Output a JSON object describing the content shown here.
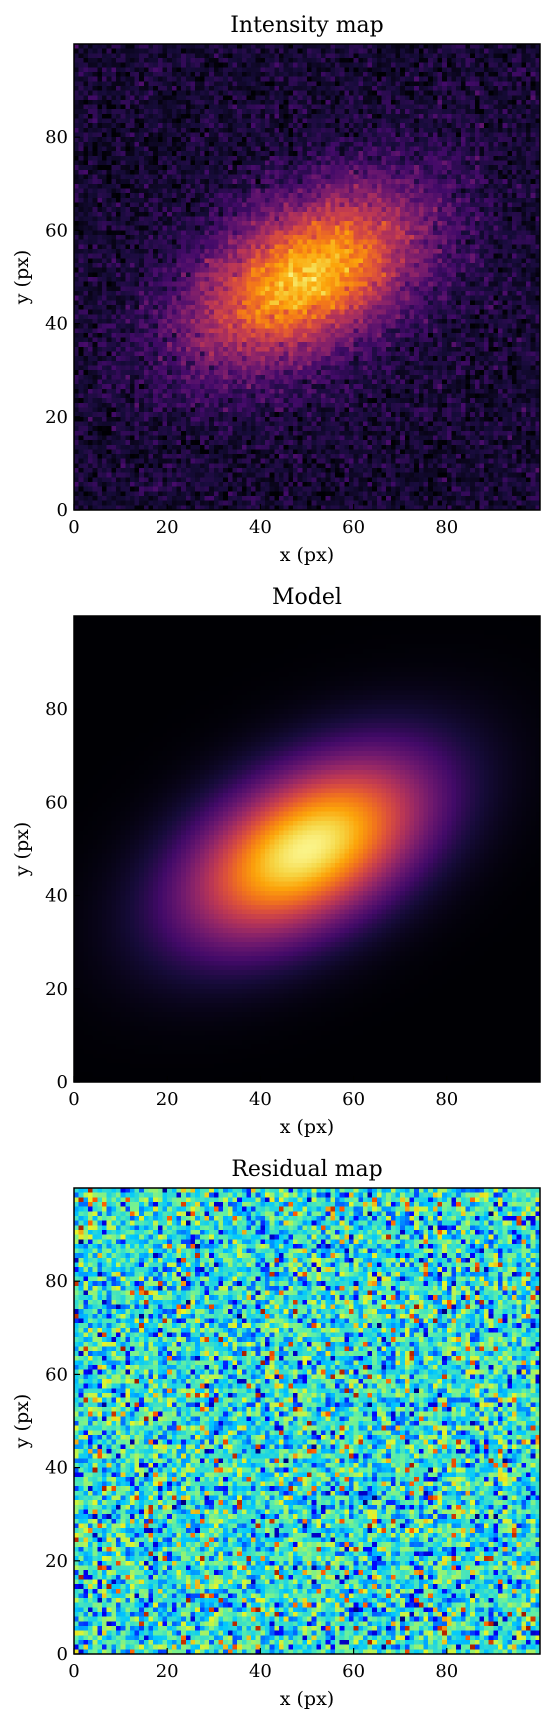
{
  "figure": {
    "panels": [
      {
        "title": "Intensity map",
        "xlabel": "x (px)",
        "ylabel": "y (px)"
      },
      {
        "title": "Model",
        "xlabel": "x (px)",
        "ylabel": "y (px)"
      },
      {
        "title": "Residual map",
        "xlabel": "x (px)",
        "ylabel": "y (px)"
      }
    ]
  },
  "chart_data": [
    {
      "type": "heatmap",
      "title": "Intensity map",
      "xlabel": "x (px)",
      "ylabel": "y (px)",
      "xlim": [
        0,
        100
      ],
      "ylim": [
        0,
        100
      ],
      "xticks": [
        0,
        20,
        40,
        60,
        80
      ],
      "yticks": [
        0,
        20,
        40,
        60,
        80
      ],
      "grid_size": [
        100,
        100
      ],
      "colormap": "inferno",
      "colorbar": false,
      "grid": false,
      "content": "elliptical 2D gaussian blob plus pixel noise",
      "source_center": [
        50,
        50
      ],
      "position_angle_deg": 30,
      "sigma_major": 18,
      "sigma_minor": 10
    },
    {
      "type": "heatmap",
      "title": "Model",
      "xlabel": "x (px)",
      "ylabel": "y (px)",
      "xlim": [
        0,
        100
      ],
      "ylim": [
        0,
        100
      ],
      "xticks": [
        0,
        20,
        40,
        60,
        80
      ],
      "yticks": [
        0,
        20,
        40,
        60,
        80
      ],
      "grid_size": [
        100,
        100
      ],
      "colormap": "inferno",
      "colorbar": false,
      "grid": false,
      "content": "smooth elliptical 2D gaussian",
      "source_center": [
        50,
        50
      ],
      "position_angle_deg": 30,
      "sigma_major": 18,
      "sigma_minor": 10
    },
    {
      "type": "heatmap",
      "title": "Residual map",
      "xlabel": "x (px)",
      "ylabel": "y (px)",
      "xlim": [
        0,
        100
      ],
      "ylim": [
        0,
        100
      ],
      "xticks": [
        0,
        20,
        40,
        60,
        80
      ],
      "yticks": [
        0,
        20,
        40,
        60,
        80
      ],
      "grid_size": [
        100,
        100
      ],
      "colormap": "jet",
      "colorbar": false,
      "grid": false,
      "content": "uniform random noise centered near zero"
    }
  ]
}
